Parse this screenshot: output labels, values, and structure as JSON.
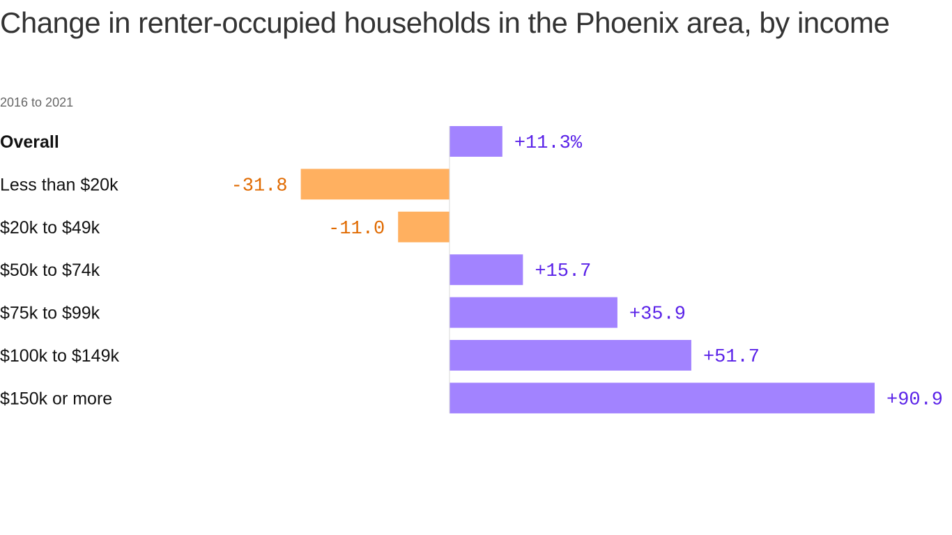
{
  "chart_data": {
    "type": "bar",
    "orientation": "horizontal",
    "title": "Change in renter-occupied households in the Phoenix area, by income",
    "subtitle": "2016 to 2021",
    "categories": [
      "Overall",
      "Less than $20k",
      "$20k to $49k",
      "$50k to $74k",
      "$75k to $99k",
      "$100k to $149k",
      "$150k or more"
    ],
    "values": [
      11.3,
      -31.8,
      -11.0,
      15.7,
      35.9,
      51.7,
      90.9
    ],
    "labels": [
      "+11.3%",
      "-31.8",
      "-11.0",
      "+15.7",
      "+35.9",
      "+51.7",
      "+90.9"
    ],
    "bold_categories": [
      "Overall"
    ],
    "xlabel": "",
    "ylabel": "",
    "unit": "%",
    "xlim": [
      -31.8,
      90.9
    ],
    "grid": false,
    "colors": {
      "positive": "#a283ff",
      "negative": "#ffb060",
      "positive_label": "#5a22e8",
      "negative_label": "#e06a00",
      "zero_line": "#d8d8d8"
    }
  }
}
